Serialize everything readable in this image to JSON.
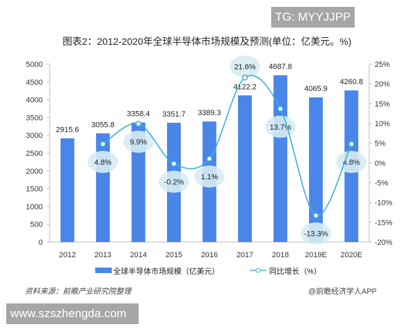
{
  "watermark_top": "TG: MYYJJPP",
  "watermark_bottom": "www.szszhengda.com",
  "source": "资料来源：前瞻产业研究院整理",
  "publisher": "@前瞻经济学人APP",
  "chart_data": {
    "type": "bar+line",
    "title": "图表2：2012-2020年全球半导体市场规模及预测(单位：亿美元。%)",
    "categories": [
      "2012",
      "2013",
      "2014",
      "2015",
      "2016",
      "2017",
      "2018",
      "2019E",
      "2020E"
    ],
    "series": [
      {
        "name": "全球半导体市场规模（亿美元）",
        "type": "bar",
        "axis": "left",
        "color": "#4a86e8",
        "values": [
          2915.6,
          3055.8,
          3358.4,
          3351.7,
          3389.3,
          4122.2,
          4687.8,
          4065.9,
          4260.8
        ],
        "labels": [
          "2915.6",
          "3055.8",
          "3358.4",
          "3351.7",
          "3389.3",
          "4122.2",
          "4687.8",
          "4065.9",
          "4260.8"
        ]
      },
      {
        "name": "同比增长（%）",
        "type": "line",
        "axis": "right",
        "color": "#3ab0d8",
        "values": [
          null,
          4.8,
          9.9,
          -0.2,
          1.1,
          21.6,
          13.7,
          -13.3,
          4.8
        ],
        "labels": [
          "",
          "4.8%",
          "9.9%",
          "-0.2%",
          "1.1%",
          "21.6%",
          "13.7%",
          "-13.3%",
          "4.8%"
        ]
      }
    ],
    "y_left": {
      "min": 0,
      "max": 5000,
      "ticks": [
        "0",
        "500",
        "1000",
        "1500",
        "2000",
        "2500",
        "3000",
        "3500",
        "4000",
        "4500",
        "5000"
      ]
    },
    "y_right": {
      "min": -20,
      "max": 25,
      "ticks": [
        "-20%",
        "-15%",
        "-10%",
        "-5%",
        "0%",
        "5%",
        "10%",
        "15%",
        "20%",
        "25%"
      ]
    },
    "grid": false,
    "legend_position": "bottom"
  }
}
